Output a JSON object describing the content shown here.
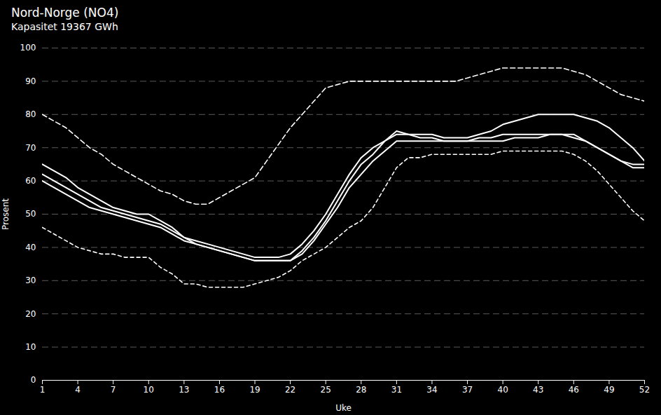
{
  "chart_data": {
    "type": "line",
    "title": "Nord-Norge  (NO4)",
    "subtitle": "Kapasitet 19367 GWh",
    "x_label": "Uke",
    "y_label": "Prosent",
    "x": [
      1,
      2,
      3,
      4,
      5,
      6,
      7,
      8,
      9,
      10,
      11,
      12,
      13,
      14,
      15,
      16,
      17,
      18,
      19,
      20,
      21,
      22,
      23,
      24,
      25,
      26,
      27,
      28,
      29,
      30,
      31,
      32,
      33,
      34,
      35,
      36,
      37,
      38,
      39,
      40,
      41,
      42,
      43,
      44,
      45,
      46,
      47,
      48,
      49,
      50,
      51,
      52
    ],
    "series": [
      {
        "color": "#ffffff",
        "line_style": "dashed",
        "values": [
          80,
          78,
          76,
          73,
          70,
          68,
          65,
          63,
          61,
          59,
          57,
          56,
          54,
          53,
          53,
          55,
          57,
          59,
          61,
          66,
          71,
          76,
          80,
          84,
          88,
          89,
          90,
          90,
          90,
          90,
          90,
          90,
          90,
          90,
          90,
          90,
          91,
          92,
          93,
          94,
          94,
          94,
          94,
          94,
          94,
          93,
          92,
          90,
          88,
          86,
          85,
          84
        ]
      },
      {
        "color": "#ffffff",
        "line_style": "dashed",
        "values": [
          46,
          44,
          42,
          40,
          39,
          38,
          38,
          37,
          37,
          37,
          34,
          32,
          29,
          29,
          28,
          28,
          28,
          28,
          29,
          30,
          31,
          33,
          36,
          38,
          40,
          43,
          46,
          48,
          52,
          58,
          64,
          67,
          67,
          68,
          68,
          68,
          68,
          68,
          68,
          69,
          69,
          69,
          69,
          69,
          69,
          68,
          66,
          63,
          59,
          55,
          51,
          48
        ]
      },
      {
        "color": "#ffffff",
        "line_style": "solid",
        "values": [
          65,
          63,
          61,
          58,
          56,
          54,
          52,
          51,
          50,
          50,
          48,
          46,
          43,
          42,
          41,
          40,
          39,
          38,
          37,
          37,
          37,
          38,
          41,
          45,
          50,
          56,
          62,
          67,
          70,
          72,
          74,
          74,
          74,
          74,
          73,
          73,
          73,
          74,
          75,
          77,
          78,
          79,
          80,
          80,
          80,
          80,
          79,
          78,
          76,
          73,
          70,
          66
        ]
      },
      {
        "color": "#ffffff",
        "line_style": "solid",
        "values": [
          62,
          60,
          58,
          56,
          54,
          52,
          51,
          50,
          49,
          48,
          47,
          45,
          43,
          41,
          40,
          39,
          38,
          37,
          36,
          36,
          36,
          36,
          39,
          43,
          48,
          54,
          60,
          65,
          68,
          72,
          75,
          74,
          73,
          73,
          72,
          72,
          72,
          73,
          73,
          74,
          74,
          74,
          74,
          74,
          74,
          74,
          72,
          70,
          68,
          66,
          64,
          64
        ]
      },
      {
        "color": "#ffffff",
        "line_style": "solid",
        "values": [
          60,
          58,
          56,
          54,
          52,
          51,
          50,
          49,
          48,
          47,
          46,
          44,
          42,
          41,
          40,
          39,
          38,
          37,
          36,
          36,
          36,
          36,
          38,
          42,
          47,
          52,
          58,
          62,
          66,
          69,
          72,
          72,
          72,
          72,
          72,
          72,
          72,
          72,
          72,
          72,
          73,
          73,
          73,
          74,
          74,
          73,
          72,
          70,
          68,
          66,
          65,
          65
        ]
      }
    ],
    "xlim": [
      1,
      52
    ],
    "xticks": [
      1,
      4,
      7,
      10,
      13,
      16,
      19,
      22,
      25,
      28,
      31,
      34,
      37,
      40,
      43,
      46,
      49,
      52
    ],
    "ylim": [
      0,
      100
    ],
    "yticks": [
      0,
      10,
      20,
      30,
      40,
      50,
      60,
      70,
      80,
      90,
      100
    ],
    "grid": "y"
  }
}
